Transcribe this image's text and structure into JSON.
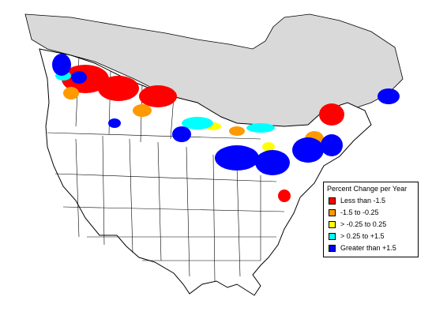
{
  "map": {
    "land_fill": "#ffffff",
    "outline_color": "#000000",
    "out_of_range_fill": "#d9d9d9"
  },
  "legend": {
    "title": "Percent Change per Year",
    "classes": [
      {
        "label": "Less than -1.5",
        "color": "#ff0000"
      },
      {
        "label": "-1.5 to -0.25",
        "color": "#ff9900"
      },
      {
        "label": "> -0.25 to 0.25",
        "color": "#ffff00"
      },
      {
        "label": "> 0.25 to +1.5",
        "color": "#00ffff"
      },
      {
        "label": "Greater than +1.5",
        "color": "#0000ff"
      }
    ]
  }
}
